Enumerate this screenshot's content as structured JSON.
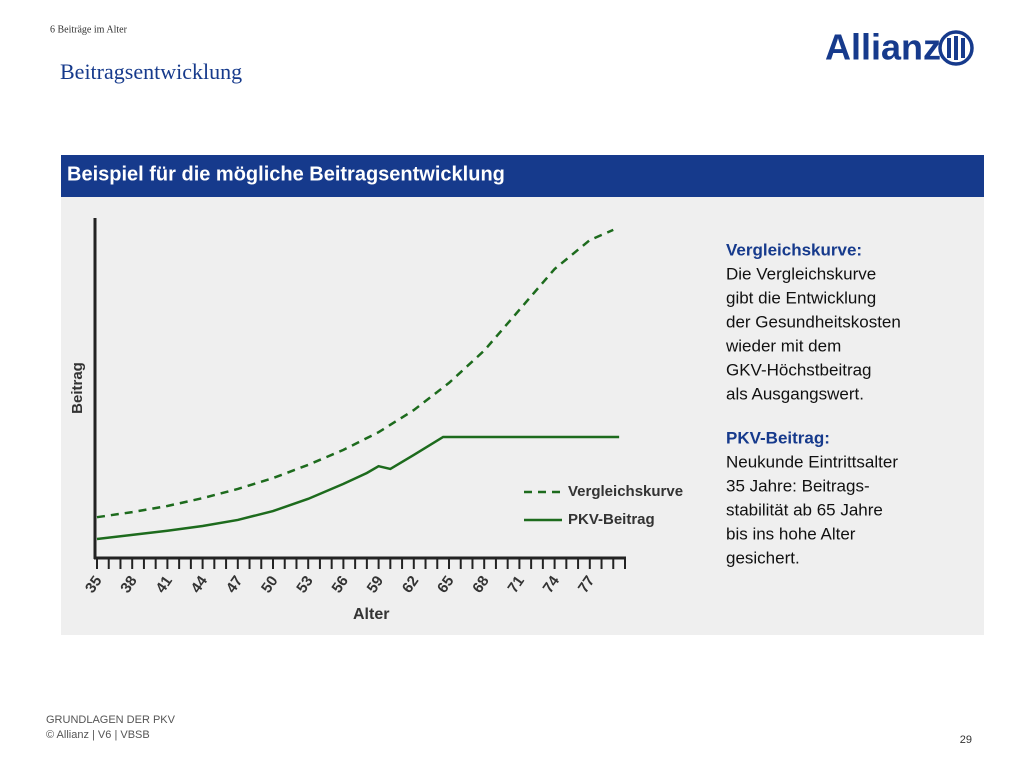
{
  "header": {
    "section": "6 Beiträge im Alter",
    "title": "Beitragsentwicklung",
    "logo": "Allianz"
  },
  "panel": {
    "title": "Beispiel für die mögliche Beitragsentwicklung"
  },
  "chart_data": {
    "type": "line",
    "xlabel": "Alter",
    "ylabel": "Beitrag",
    "xlim": [
      35,
      80
    ],
    "ylim": [
      0,
      100
    ],
    "xticks": [
      35,
      38,
      41,
      44,
      47,
      50,
      53,
      56,
      59,
      62,
      65,
      68,
      71,
      74,
      77
    ],
    "xminorticks": [
      35,
      36,
      37,
      38,
      39,
      40,
      41,
      42,
      43,
      44,
      45,
      46,
      47,
      48,
      49,
      50,
      51,
      52,
      53,
      54,
      55,
      56,
      57,
      58,
      59,
      60,
      61,
      62,
      63,
      64,
      65,
      66,
      67,
      68,
      69,
      70,
      71,
      72,
      73,
      74,
      75,
      76,
      77,
      78,
      79,
      80
    ],
    "series": [
      {
        "name": "Vergleichskurve",
        "color": "#1d6b1d",
        "dashed": true,
        "x": [
          35,
          38,
          41,
          44,
          47,
          50,
          53,
          56,
          59,
          62,
          65,
          68,
          71,
          74,
          77,
          79
        ],
        "values": [
          12,
          13.5,
          15.3,
          17.6,
          20.3,
          23.5,
          27.4,
          31.8,
          37,
          43.5,
          51.5,
          61,
          73,
          85,
          93.5,
          96.5
        ]
      },
      {
        "name": "PKV-Beitrag",
        "color": "#1d6b1d",
        "dashed": false,
        "x": [
          35,
          38,
          41,
          44,
          47,
          50,
          53,
          56,
          58,
          59,
          60,
          62,
          64.5,
          79.5
        ],
        "values": [
          5.6,
          6.8,
          8,
          9.4,
          11.2,
          13.8,
          17.4,
          21.8,
          25,
          27,
          26.2,
          30.3,
          35.6,
          35.6
        ]
      }
    ]
  },
  "annotations": [
    {
      "heading": "Vergleichskurve:",
      "lines": [
        "Die Vergleichskurve",
        "gibt die Entwicklung",
        "der Gesundheitskosten",
        "wieder mit dem",
        "GKV-Höchstbeitrag",
        "als Ausgangswert."
      ]
    },
    {
      "heading": "PKV-Beitrag:",
      "lines": [
        "Neukunde Eintrittsalter",
        "35 Jahre: Beitrags-",
        "stabilität ab 65 Jahre",
        "bis ins hohe Alter",
        "gesichert."
      ]
    }
  ],
  "footer": {
    "line1": "GRUNDLAGEN DER PKV",
    "line2": "© Allianz | V6 | VBSB",
    "page": "29"
  }
}
